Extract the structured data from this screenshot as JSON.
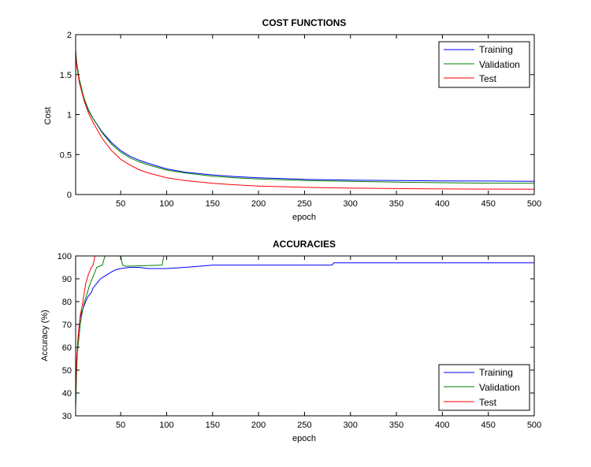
{
  "chart_data": [
    {
      "type": "line",
      "title": "COST FUNCTIONS",
      "xlabel": "epoch",
      "ylabel": "Cost",
      "xlim": [
        1,
        500
      ],
      "ylim": [
        0,
        2
      ],
      "xticks": [
        "50",
        "100",
        "150",
        "200",
        "250",
        "300",
        "350",
        "400",
        "450",
        "500"
      ],
      "yticks": [
        "0",
        "0.5",
        "1",
        "1.5",
        "2"
      ],
      "legend_position": "top-right",
      "grid": false,
      "series": [
        {
          "name": "Training",
          "color": "#0000ff",
          "x": [
            1,
            2,
            5,
            10,
            15,
            20,
            30,
            40,
            50,
            60,
            70,
            80,
            100,
            120,
            150,
            175,
            200,
            250,
            300,
            350,
            400,
            450,
            500
          ],
          "y": [
            1.8,
            1.65,
            1.42,
            1.2,
            1.05,
            0.95,
            0.78,
            0.65,
            0.55,
            0.48,
            0.43,
            0.39,
            0.32,
            0.28,
            0.245,
            0.225,
            0.21,
            0.19,
            0.18,
            0.175,
            0.17,
            0.168,
            0.165
          ]
        },
        {
          "name": "Validation",
          "color": "#008000",
          "x": [
            1,
            2,
            5,
            10,
            15,
            20,
            30,
            40,
            50,
            60,
            70,
            80,
            100,
            120,
            150,
            175,
            200,
            250,
            300,
            350,
            400,
            450,
            500
          ],
          "y": [
            1.8,
            1.66,
            1.44,
            1.21,
            1.06,
            0.95,
            0.77,
            0.63,
            0.53,
            0.46,
            0.41,
            0.37,
            0.305,
            0.27,
            0.23,
            0.21,
            0.195,
            0.175,
            0.165,
            0.155,
            0.148,
            0.142,
            0.14
          ]
        },
        {
          "name": "Test",
          "color": "#ff0000",
          "x": [
            1,
            2,
            5,
            10,
            15,
            20,
            30,
            40,
            50,
            60,
            70,
            80,
            100,
            120,
            150,
            175,
            200,
            250,
            300,
            350,
            400,
            450,
            500
          ],
          "y": [
            1.75,
            1.62,
            1.4,
            1.18,
            1.02,
            0.9,
            0.7,
            0.55,
            0.44,
            0.37,
            0.31,
            0.27,
            0.21,
            0.175,
            0.14,
            0.12,
            0.105,
            0.09,
            0.08,
            0.075,
            0.07,
            0.068,
            0.066
          ]
        }
      ]
    },
    {
      "type": "line",
      "title": "ACCURACIES",
      "xlabel": "epoch",
      "ylabel": "Accuracy (%)",
      "xlim": [
        1,
        500
      ],
      "ylim": [
        30,
        100
      ],
      "xticks": [
        "50",
        "100",
        "150",
        "200",
        "250",
        "300",
        "350",
        "400",
        "450",
        "500"
      ],
      "yticks": [
        "30",
        "40",
        "50",
        "60",
        "70",
        "80",
        "90",
        "100"
      ],
      "legend_position": "bottom-right",
      "grid": false,
      "series": [
        {
          "name": "Training",
          "color": "#0000ff",
          "x": [
            1,
            2,
            3,
            4,
            5,
            6,
            8,
            10,
            12,
            14,
            16,
            18,
            20,
            24,
            28,
            32,
            36,
            40,
            45,
            50,
            60,
            70,
            80,
            100,
            120,
            135,
            150,
            200,
            250,
            280,
            282,
            500
          ],
          "y": [
            35,
            52,
            60,
            66,
            70,
            73,
            76,
            78,
            80,
            82,
            83,
            84,
            86,
            88,
            90,
            91,
            92,
            93,
            94,
            94.5,
            95,
            95,
            94.5,
            94.5,
            95,
            95.5,
            96,
            96,
            96,
            96,
            97,
            97
          ]
        },
        {
          "name": "Validation",
          "color": "#008000",
          "x": [
            1,
            2,
            3,
            4,
            5,
            6,
            8,
            10,
            13,
            16,
            20,
            24,
            30,
            33,
            50,
            52,
            55,
            95,
            97,
            500
          ],
          "y": [
            33,
            50,
            58,
            62,
            66,
            70,
            75,
            79,
            83,
            87,
            91,
            95,
            96,
            100,
            100,
            96,
            95.5,
            96,
            100,
            100
          ]
        },
        {
          "name": "Test",
          "color": "#ff0000",
          "x": [
            1,
            2,
            3,
            4,
            5,
            6,
            8,
            10,
            12,
            15,
            18,
            20,
            22,
            500
          ],
          "y": [
            40,
            54,
            60,
            66,
            70,
            74,
            78,
            83,
            88,
            92,
            95,
            96,
            100,
            100
          ]
        }
      ]
    }
  ]
}
